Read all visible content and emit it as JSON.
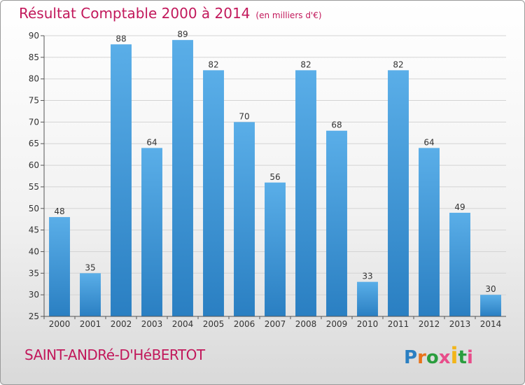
{
  "header": {
    "title": "Résultat Comptable 2000 à 2014",
    "subtitle": "(en milliers d'€)"
  },
  "footer": {
    "place": "SAINT-ANDRé-D'HéBERTOT",
    "logo": "Proxiti"
  },
  "colors": {
    "accent": "#c2185b",
    "bar_top": "#5aaee8",
    "bar_bottom": "#2a7fc2"
  },
  "chart_data": {
    "type": "bar",
    "title": "Résultat Comptable 2000 à 2014",
    "subtitle": "(en milliers d'€)",
    "categories": [
      "2000",
      "2001",
      "2002",
      "2003",
      "2004",
      "2005",
      "2006",
      "2007",
      "2008",
      "2009",
      "2010",
      "2011",
      "2012",
      "2013",
      "2014"
    ],
    "values": [
      48,
      35,
      88,
      64,
      89,
      82,
      70,
      56,
      82,
      68,
      33,
      82,
      64,
      49,
      30
    ],
    "ylim": [
      25,
      90
    ],
    "yticks": [
      25,
      30,
      35,
      40,
      45,
      50,
      55,
      60,
      65,
      70,
      75,
      80,
      85,
      90
    ],
    "grid": true,
    "data_labels": true
  }
}
